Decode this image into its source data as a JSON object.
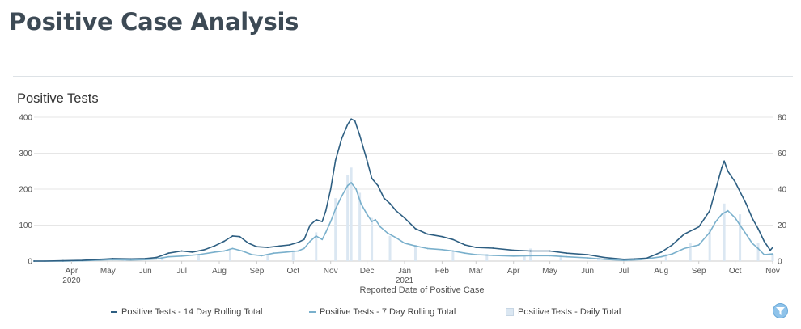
{
  "page": {
    "title": "Positive Case Analysis"
  },
  "colors": {
    "series14": "#2e5f82",
    "series7": "#7ab0cc",
    "daily": "#dbe7f2",
    "grid": "#e6e6e6",
    "accent": "#8fc3ea"
  },
  "chart_data": {
    "type": "line",
    "title": "Positive Tests",
    "xlabel": "Reported Date of Positive Case",
    "x_ticks": [
      {
        "label": "Apr",
        "sublabel": "2020",
        "date": "2020-04-01"
      },
      {
        "label": "May",
        "date": "2020-05-01"
      },
      {
        "label": "Jun",
        "date": "2020-06-01"
      },
      {
        "label": "Jul",
        "date": "2020-07-01"
      },
      {
        "label": "Aug",
        "date": "2020-08-01"
      },
      {
        "label": "Sep",
        "date": "2020-09-01"
      },
      {
        "label": "Oct",
        "date": "2020-10-01"
      },
      {
        "label": "Nov",
        "date": "2020-11-01"
      },
      {
        "label": "Dec",
        "date": "2020-12-01"
      },
      {
        "label": "Jan",
        "sublabel": "2021",
        "date": "2021-01-01"
      },
      {
        "label": "Feb",
        "date": "2021-02-01"
      },
      {
        "label": "Mar",
        "date": "2021-03-01"
      },
      {
        "label": "Apr",
        "date": "2021-04-01"
      },
      {
        "label": "May",
        "date": "2021-05-01"
      },
      {
        "label": "Jun",
        "date": "2021-06-01"
      },
      {
        "label": "Jul",
        "date": "2021-07-01"
      },
      {
        "label": "Aug",
        "date": "2021-08-01"
      },
      {
        "label": "Sep",
        "date": "2021-09-01"
      },
      {
        "label": "Oct",
        "date": "2021-10-01"
      },
      {
        "label": "Nov",
        "date": "2021-11-01"
      }
    ],
    "xlim": [
      "2020-03-01",
      "2021-11-01"
    ],
    "y_left": {
      "ticks": [
        "0",
        "100",
        "200",
        "300",
        "400"
      ],
      "ylim": [
        0,
        400
      ]
    },
    "y_right": {
      "ticks": [
        "0",
        "20",
        "40",
        "60",
        "80"
      ],
      "ylim": [
        0,
        80
      ]
    },
    "grid": true,
    "legend_position": "bottom",
    "series": [
      {
        "name": "Positive Tests - 14 Day Rolling Total",
        "axis": "left",
        "type": "line",
        "points": [
          [
            "2020-03-01",
            0
          ],
          [
            "2020-03-10",
            0
          ],
          [
            "2020-03-25",
            1
          ],
          [
            "2020-04-10",
            2
          ],
          [
            "2020-04-25",
            5
          ],
          [
            "2020-05-05",
            7
          ],
          [
            "2020-05-20",
            6
          ],
          [
            "2020-06-01",
            7
          ],
          [
            "2020-06-10",
            10
          ],
          [
            "2020-06-20",
            22
          ],
          [
            "2020-07-01",
            28
          ],
          [
            "2020-07-10",
            25
          ],
          [
            "2020-07-20",
            32
          ],
          [
            "2020-07-28",
            42
          ],
          [
            "2020-08-05",
            55
          ],
          [
            "2020-08-12",
            70
          ],
          [
            "2020-08-18",
            68
          ],
          [
            "2020-08-25",
            50
          ],
          [
            "2020-09-01",
            40
          ],
          [
            "2020-09-10",
            38
          ],
          [
            "2020-09-20",
            42
          ],
          [
            "2020-09-28",
            45
          ],
          [
            "2020-10-05",
            52
          ],
          [
            "2020-10-10",
            60
          ],
          [
            "2020-10-15",
            100
          ],
          [
            "2020-10-20",
            115
          ],
          [
            "2020-10-25",
            110
          ],
          [
            "2020-10-28",
            140
          ],
          [
            "2020-11-01",
            200
          ],
          [
            "2020-11-05",
            280
          ],
          [
            "2020-11-10",
            340
          ],
          [
            "2020-11-15",
            380
          ],
          [
            "2020-11-18",
            395
          ],
          [
            "2020-11-21",
            390
          ],
          [
            "2020-11-25",
            350
          ],
          [
            "2020-12-01",
            280
          ],
          [
            "2020-12-05",
            230
          ],
          [
            "2020-12-10",
            210
          ],
          [
            "2020-12-15",
            175
          ],
          [
            "2020-12-20",
            160
          ],
          [
            "2020-12-25",
            140
          ],
          [
            "2021-01-01",
            120
          ],
          [
            "2021-01-10",
            90
          ],
          [
            "2021-01-20",
            75
          ],
          [
            "2021-02-01",
            68
          ],
          [
            "2021-02-10",
            60
          ],
          [
            "2021-02-20",
            45
          ],
          [
            "2021-03-01",
            38
          ],
          [
            "2021-03-15",
            36
          ],
          [
            "2021-04-01",
            30
          ],
          [
            "2021-04-15",
            28
          ],
          [
            "2021-05-01",
            28
          ],
          [
            "2021-05-15",
            22
          ],
          [
            "2021-06-01",
            18
          ],
          [
            "2021-06-15",
            10
          ],
          [
            "2021-07-01",
            5
          ],
          [
            "2021-07-10",
            6
          ],
          [
            "2021-07-20",
            8
          ],
          [
            "2021-08-01",
            25
          ],
          [
            "2021-08-10",
            45
          ],
          [
            "2021-08-20",
            75
          ],
          [
            "2021-09-01",
            95
          ],
          [
            "2021-09-10",
            140
          ],
          [
            "2021-09-15",
            200
          ],
          [
            "2021-09-20",
            260
          ],
          [
            "2021-09-22",
            278
          ],
          [
            "2021-09-25",
            250
          ],
          [
            "2021-10-01",
            220
          ],
          [
            "2021-10-10",
            160
          ],
          [
            "2021-10-15",
            120
          ],
          [
            "2021-10-20",
            90
          ],
          [
            "2021-10-25",
            55
          ],
          [
            "2021-10-30",
            30
          ],
          [
            "2021-11-01",
            38
          ]
        ]
      },
      {
        "name": "Positive Tests - 7 Day Rolling Total",
        "axis": "left",
        "type": "line",
        "points": [
          [
            "2020-03-01",
            0
          ],
          [
            "2020-03-25",
            0
          ],
          [
            "2020-04-10",
            1
          ],
          [
            "2020-04-25",
            3
          ],
          [
            "2020-05-05",
            4
          ],
          [
            "2020-05-20",
            3
          ],
          [
            "2020-06-01",
            4
          ],
          [
            "2020-06-10",
            6
          ],
          [
            "2020-06-20",
            12
          ],
          [
            "2020-07-01",
            14
          ],
          [
            "2020-07-15",
            18
          ],
          [
            "2020-07-28",
            25
          ],
          [
            "2020-08-05",
            28
          ],
          [
            "2020-08-12",
            35
          ],
          [
            "2020-08-20",
            28
          ],
          [
            "2020-08-28",
            18
          ],
          [
            "2020-09-05",
            15
          ],
          [
            "2020-09-15",
            22
          ],
          [
            "2020-09-25",
            25
          ],
          [
            "2020-10-05",
            28
          ],
          [
            "2020-10-10",
            35
          ],
          [
            "2020-10-15",
            55
          ],
          [
            "2020-10-20",
            70
          ],
          [
            "2020-10-25",
            60
          ],
          [
            "2020-10-28",
            80
          ],
          [
            "2020-11-01",
            110
          ],
          [
            "2020-11-05",
            145
          ],
          [
            "2020-11-10",
            180
          ],
          [
            "2020-11-15",
            210
          ],
          [
            "2020-11-18",
            218
          ],
          [
            "2020-11-22",
            200
          ],
          [
            "2020-11-26",
            160
          ],
          [
            "2020-12-01",
            130
          ],
          [
            "2020-12-05",
            110
          ],
          [
            "2020-12-08",
            115
          ],
          [
            "2020-12-12",
            95
          ],
          [
            "2020-12-18",
            78
          ],
          [
            "2020-12-25",
            65
          ],
          [
            "2021-01-01",
            50
          ],
          [
            "2021-01-10",
            42
          ],
          [
            "2021-01-20",
            35
          ],
          [
            "2021-02-01",
            32
          ],
          [
            "2021-02-10",
            28
          ],
          [
            "2021-02-20",
            22
          ],
          [
            "2021-03-01",
            18
          ],
          [
            "2021-03-15",
            16
          ],
          [
            "2021-04-01",
            14
          ],
          [
            "2021-04-15",
            15
          ],
          [
            "2021-05-01",
            15
          ],
          [
            "2021-05-15",
            12
          ],
          [
            "2021-06-01",
            9
          ],
          [
            "2021-06-15",
            5
          ],
          [
            "2021-07-01",
            2
          ],
          [
            "2021-07-15",
            4
          ],
          [
            "2021-08-01",
            12
          ],
          [
            "2021-08-10",
            20
          ],
          [
            "2021-08-20",
            35
          ],
          [
            "2021-09-01",
            45
          ],
          [
            "2021-09-10",
            80
          ],
          [
            "2021-09-15",
            110
          ],
          [
            "2021-09-20",
            130
          ],
          [
            "2021-09-25",
            140
          ],
          [
            "2021-10-01",
            120
          ],
          [
            "2021-10-05",
            100
          ],
          [
            "2021-10-10",
            75
          ],
          [
            "2021-10-15",
            50
          ],
          [
            "2021-10-20",
            35
          ],
          [
            "2021-10-25",
            18
          ],
          [
            "2021-11-01",
            20
          ]
        ]
      },
      {
        "name": "Positive Tests - Daily Total",
        "axis": "right",
        "type": "bar",
        "points": [
          [
            "2020-03-15",
            0
          ],
          [
            "2020-04-15",
            0.6
          ],
          [
            "2020-05-15",
            1.2
          ],
          [
            "2020-06-15",
            2.5
          ],
          [
            "2020-07-15",
            4
          ],
          [
            "2020-08-10",
            7
          ],
          [
            "2020-09-10",
            4
          ],
          [
            "2020-10-01",
            6
          ],
          [
            "2020-10-20",
            16
          ],
          [
            "2020-11-05",
            35
          ],
          [
            "2020-11-15",
            48
          ],
          [
            "2020-11-18",
            52
          ],
          [
            "2020-11-25",
            38
          ],
          [
            "2020-12-05",
            24
          ],
          [
            "2020-12-20",
            14
          ],
          [
            "2021-01-10",
            9
          ],
          [
            "2021-02-10",
            6
          ],
          [
            "2021-03-10",
            4
          ],
          [
            "2021-04-10",
            3
          ],
          [
            "2021-04-15",
            7
          ],
          [
            "2021-05-10",
            3
          ],
          [
            "2021-06-10",
            2
          ],
          [
            "2021-07-05",
            0.5
          ],
          [
            "2021-08-05",
            4
          ],
          [
            "2021-08-25",
            10
          ],
          [
            "2021-09-10",
            18
          ],
          [
            "2021-09-22",
            32
          ],
          [
            "2021-10-05",
            26
          ],
          [
            "2021-10-20",
            10
          ],
          [
            "2021-11-01",
            4
          ]
        ]
      }
    ]
  }
}
